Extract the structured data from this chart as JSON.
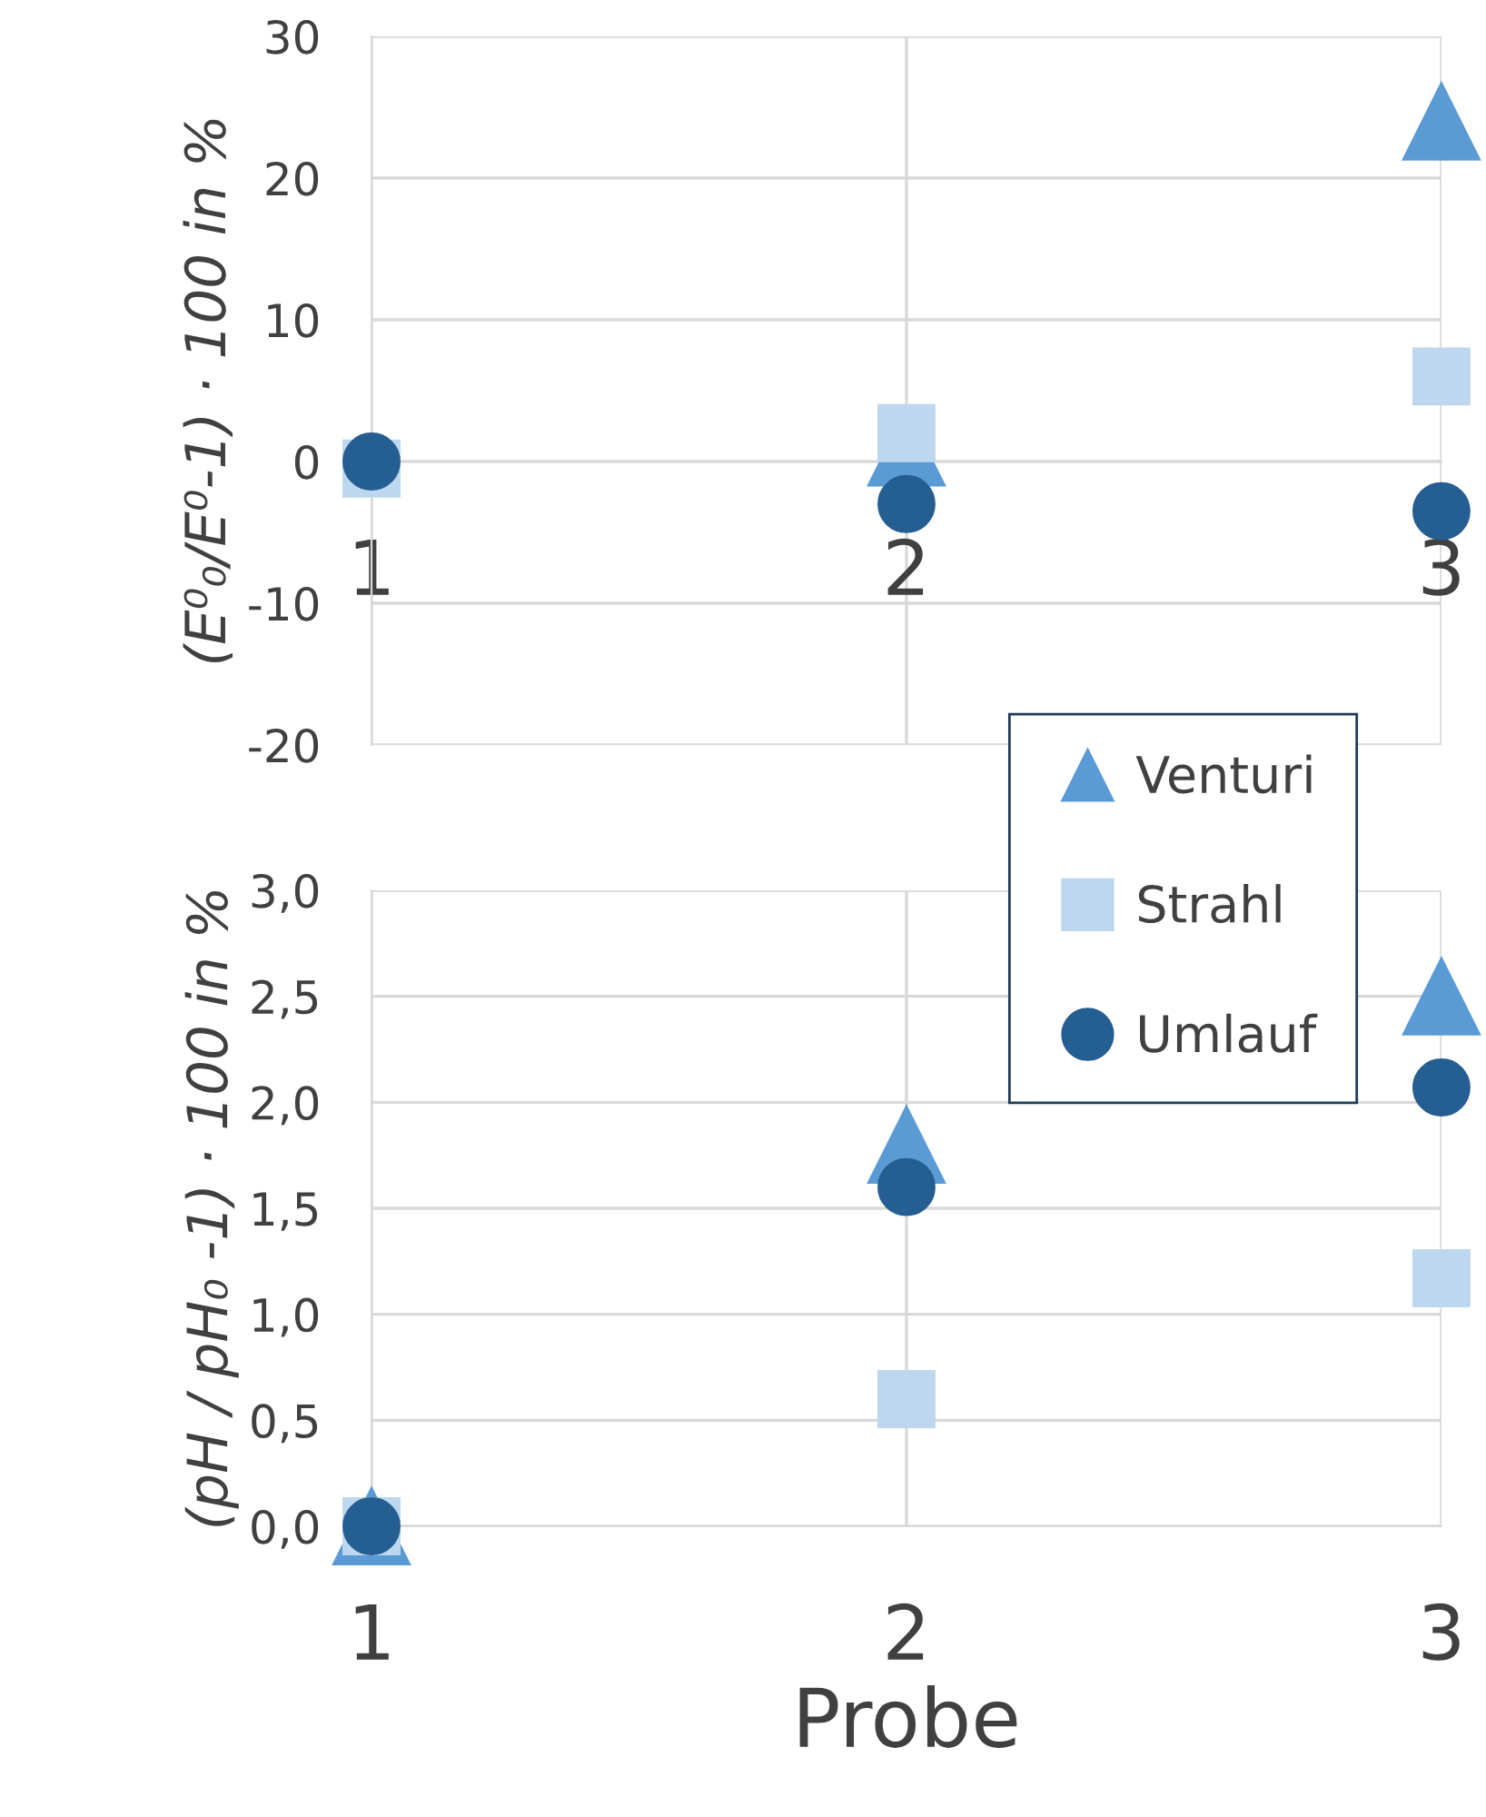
{
  "chart_data": [
    {
      "type": "scatter",
      "ylabel": "(E⁰₀/E⁰-1) · 100 in %",
      "x": [
        1,
        2,
        3
      ],
      "xlim": [
        1,
        3
      ],
      "xticks": [
        1,
        2,
        3
      ],
      "ylim": [
        -20,
        30
      ],
      "yticks": [
        -20,
        -10,
        0,
        10,
        20,
        30
      ],
      "grid": true,
      "legend": "right",
      "series": [
        {
          "name": "Venturi",
          "color": "#5b9bd5",
          "marker": "triangle",
          "values": [
            null,
            1,
            24
          ]
        },
        {
          "name": "Strahl",
          "color": "#bdd7ee",
          "marker": "square",
          "values": [
            -0.5,
            2,
            6
          ]
        },
        {
          "name": "Umlauf",
          "color": "#255e91",
          "marker": "circle",
          "values": [
            0,
            -3,
            -3.5
          ]
        }
      ]
    },
    {
      "type": "scatter",
      "xlabel": "Probe",
      "ylabel": "(pH / pH₀ -1) · 100 in %",
      "x": [
        1,
        2,
        3
      ],
      "xlim": [
        1,
        3
      ],
      "xticks": [
        1,
        2,
        3
      ],
      "ylim": [
        0,
        3
      ],
      "yticks": [
        {
          "value": 0,
          "label": "0,0"
        },
        {
          "value": 0.5,
          "label": "0,5"
        },
        {
          "value": 1,
          "label": "1,0"
        },
        {
          "value": 1.5,
          "label": "1,5"
        },
        {
          "value": 2,
          "label": "2,0"
        },
        {
          "value": 2.5,
          "label": "2,5"
        },
        {
          "value": 3,
          "label": "3,0"
        }
      ],
      "grid": true,
      "series": [
        {
          "color": "#5b9bd5",
          "marker": "triangle",
          "values": [
            0,
            1.8,
            2.5
          ]
        },
        {
          "color": "#bdd7ee",
          "marker": "square",
          "values": [
            0,
            0.6,
            1.17
          ]
        },
        {
          "color": "#255e91",
          "marker": "circle",
          "values": [
            0,
            1.6,
            2.07
          ]
        }
      ]
    }
  ]
}
